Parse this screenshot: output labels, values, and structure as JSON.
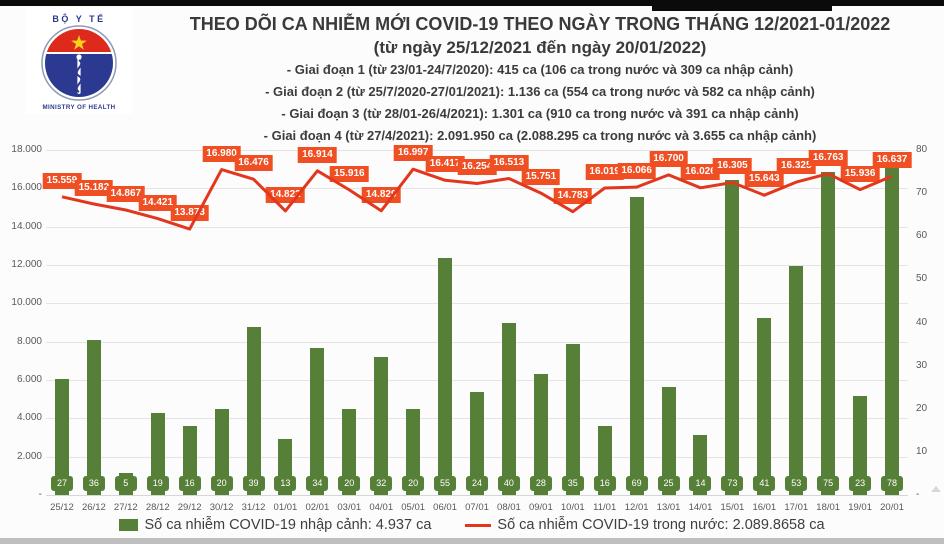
{
  "logo": {
    "top_text": "BỘ Y TẾ",
    "bottom_text": "MINISTRY OF HEALTH"
  },
  "header": {
    "title": "THEO DÕI CA NHIỄM MỚI COVID-19 THEO NGÀY TRONG THÁNG 12/2021-01/2022",
    "subtitle": "(từ ngày 25/12/2021 đến ngày 20/01/2022)",
    "stages": [
      "- Giai đoạn 1 (từ 23/01-24/7/2020): 415 ca (106 ca trong nước và 309 ca nhập cảnh)",
      "- Giai đoạn 2 (từ 25/7/2020-27/01/2021): 1.136 ca (554 ca trong nước và 582 ca nhập cảnh)",
      "- Giai đoạn 3 (từ 28/01-26/4/2021): 1.301 ca (910 ca trong nước và 391 ca nhập cảnh)",
      "- Giai đoạn 4 (từ 27/4/2021): 2.091.950 ca (2.088.295 ca trong nước và 3.655 ca nhập cảnh)"
    ]
  },
  "chart_data": {
    "type": "bar+line",
    "categories": [
      "25/12",
      "26/12",
      "27/12",
      "28/12",
      "29/12",
      "30/12",
      "31/12",
      "01/01",
      "02/01",
      "03/01",
      "04/01",
      "05/01",
      "06/01",
      "07/01",
      "08/01",
      "09/01",
      "10/01",
      "11/01",
      "12/01",
      "13/01",
      "14/01",
      "15/01",
      "16/01",
      "17/01",
      "18/01",
      "19/01",
      "20/01"
    ],
    "series": [
      {
        "name": "Số ca nhiễm COVID-19 nhập cảnh",
        "type": "bar",
        "axis": "right",
        "values": [
          27,
          36,
          5,
          19,
          16,
          20,
          39,
          13,
          34,
          20,
          32,
          20,
          55,
          24,
          40,
          28,
          35,
          16,
          69,
          25,
          14,
          73,
          41,
          53,
          75,
          23,
          78
        ]
      },
      {
        "name": "Số ca nhiễm COVID-19 trong nước",
        "type": "line",
        "axis": "left",
        "values": [
          15559,
          15182,
          14867,
          14421,
          13873,
          16980,
          16476,
          14822,
          16914,
          15916,
          14829,
          16997,
          16417,
          16254,
          16513,
          15751,
          14783,
          16019,
          16066,
          16700,
          16026,
          16305,
          15643,
          16325,
          16763,
          15936,
          16637
        ],
        "labels": [
          "15.559",
          "15.182",
          "14.867",
          "14.421",
          "13.873",
          "16.980",
          "16.476",
          "14.822",
          "16.914",
          "15.916",
          "14.829",
          "16.997",
          "16.417",
          "16.254",
          "16.513",
          "15.751",
          "14.783",
          "16.019",
          "16.066",
          "16.700",
          "16.026",
          "16.305",
          "15.643",
          "16.325",
          "16.763",
          "15.936",
          "16.637"
        ]
      }
    ],
    "left_axis": {
      "max": 18000,
      "min": 0,
      "ticks": [
        "18.000",
        "16.000",
        "14.000",
        "12.000",
        "10.000",
        "8.000",
        "6.000",
        "4.000",
        "2.000",
        "-"
      ]
    },
    "right_axis": {
      "max": 80,
      "min": 0,
      "ticks": [
        "80",
        "70",
        "60",
        "50",
        "40",
        "30",
        "20",
        "10",
        "-"
      ]
    },
    "grid": true,
    "legend_position": "bottom"
  },
  "legend": {
    "bar_label": "Số ca nhiễm COVID-19 nhập cảnh: 4.937 ca",
    "line_label": "Số ca nhiễm COVID-19 trong nước: 2.089.8658 ca"
  },
  "colors": {
    "bar": "#567f38",
    "line": "#e2371d",
    "line_label_bg": "#f04f23",
    "grid": "#e4e4e4",
    "flag_red": "#dd2a1d",
    "emblem_blue": "#2b3990",
    "star_yellow": "#f7d21a"
  }
}
